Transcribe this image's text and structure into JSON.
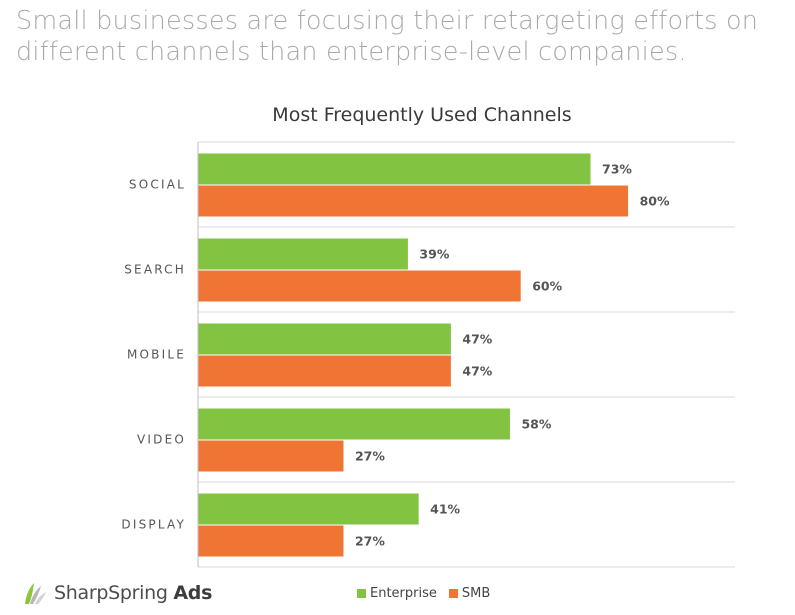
{
  "headline": {
    "line1": "Small businesses are focusing their retargeting efforts on",
    "line2": "different channels than enterprise-level companies."
  },
  "brand": {
    "name_light": "SharpSpring",
    "name_bold": "Ads"
  },
  "colors": {
    "enterprise": "#82c341",
    "smb": "#f07534",
    "grid": "#d9d9d9"
  },
  "chart_data": {
    "type": "bar",
    "orientation": "horizontal",
    "title": "Most Frequently Used Channels",
    "categories": [
      "SOCIAL",
      "SEARCH",
      "MOBILE",
      "VIDEO",
      "DISPLAY"
    ],
    "series": [
      {
        "name": "Enterprise",
        "values": [
          73,
          39,
          47,
          58,
          41
        ]
      },
      {
        "name": "SMB",
        "values": [
          80,
          60,
          47,
          27,
          27
        ]
      }
    ],
    "value_suffix": "%",
    "xlim": [
      0,
      100
    ],
    "grid": true,
    "legend_position": "bottom"
  }
}
